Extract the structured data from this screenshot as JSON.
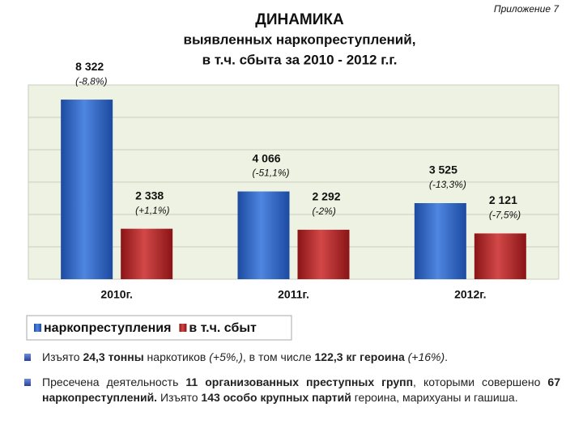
{
  "appendix": "Приложение 7",
  "chart_data": {
    "type": "bar",
    "title": [
      "ДИНАМИКА",
      "выявленных наркопреступлений,",
      "в т.ч. сбыта за 2010 - 2012 г.г."
    ],
    "categories": [
      "2010г.",
      "2011г.",
      "2012г."
    ],
    "series": [
      {
        "name": "наркопреступления",
        "color": "#2f66c4",
        "values": [
          8322,
          4066,
          3525
        ],
        "value_labels": [
          "8 322",
          "4 066",
          "3 525"
        ],
        "change_labels": [
          "(-8,8%)",
          "(-51,1%)",
          "(-13,3%)"
        ]
      },
      {
        "name": "в т.ч. сбыт",
        "color": "#b8262a",
        "values": [
          2338,
          2292,
          2121
        ],
        "value_labels": [
          "2 338",
          "2 292",
          "2 121"
        ],
        "change_labels": [
          "(+1,1%)",
          "(-2%)",
          "(-7,5%)"
        ]
      }
    ],
    "ylim": [
      0,
      9000
    ],
    "yticks": [
      0,
      1500,
      3000,
      4500,
      6000,
      7500,
      9000
    ],
    "grid": true
  },
  "bullets": [
    [
      {
        "text": "Изъято ",
        "style": "normal"
      },
      {
        "text": "24,3 тонны",
        "style": "bold"
      },
      {
        "text": " наркотиков ",
        "style": "normal"
      },
      {
        "text": "(+5%,)",
        "style": "italic"
      },
      {
        "text": ", в том числе ",
        "style": "normal"
      },
      {
        "text": "122,3 кг героина ",
        "style": "bold"
      },
      {
        "text": "(+16%)",
        "style": "italic"
      },
      {
        "text": ".",
        "style": "normal"
      }
    ],
    [
      {
        "text": "Пресечена деятельность ",
        "style": "normal"
      },
      {
        "text": "11 организованных преступных групп",
        "style": "bold"
      },
      {
        "text": ", которыми совершено ",
        "style": "normal"
      },
      {
        "text": "67 наркопреступлений.",
        "style": "bold"
      },
      {
        "text": " Изъято ",
        "style": "normal"
      },
      {
        "text": "143 особо крупных партий",
        "style": "bold"
      },
      {
        "text": " героина, марихуаны и гашиша.",
        "style": "normal"
      }
    ]
  ]
}
